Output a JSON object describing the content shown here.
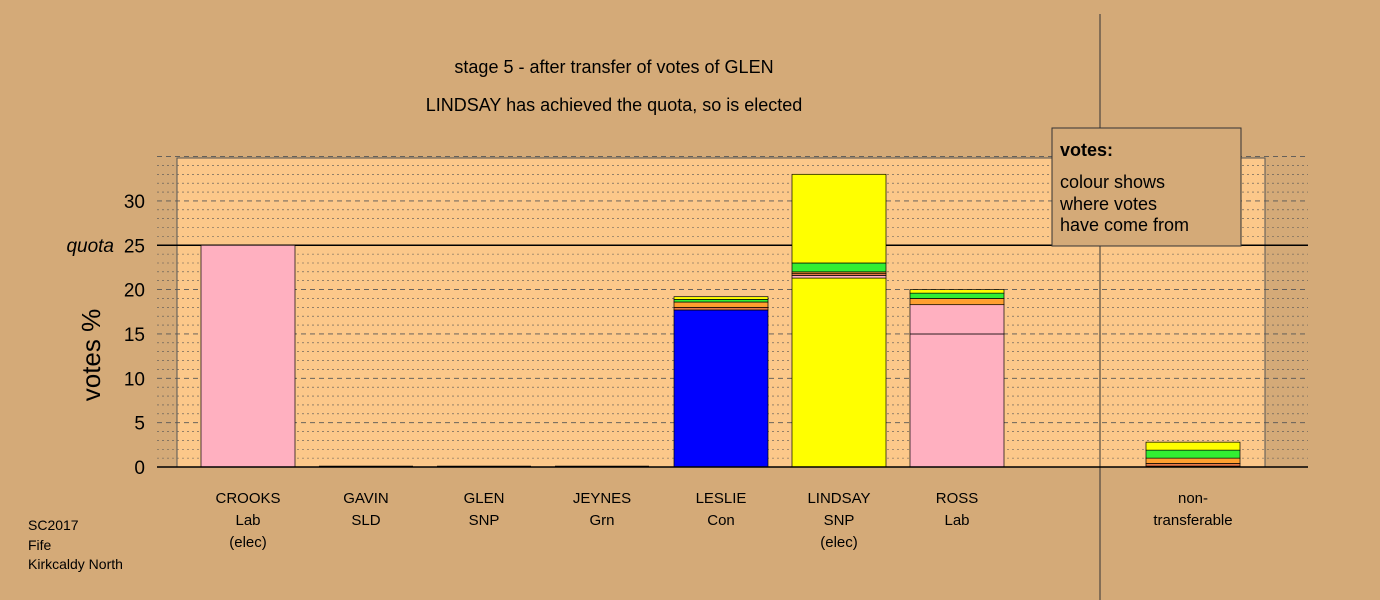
{
  "colors": {
    "background": "#d4aa78",
    "plot_background": "#fcc88a",
    "Lab": "#ffb0c0",
    "Con": "#0000ff",
    "SNP": "#ffff00",
    "Grn": "#33ee33",
    "SLD": "#ff9f2f",
    "Other": "#e87848"
  },
  "chart_data": {
    "type": "bar",
    "stacked": true,
    "title": "stage 5 - after transfer of votes of GLEN",
    "subtitle": "LINDSAY has achieved the quota, so is elected",
    "ylabel": "votes %",
    "ylim": [
      0,
      35
    ],
    "yticks": [
      0,
      5,
      10,
      15,
      20,
      25,
      30
    ],
    "quota": {
      "label": "quota",
      "value": 25
    },
    "grid": true,
    "legend": {
      "placement": "top-right",
      "title": "votes:",
      "lines": [
        "colour shows",
        "where votes",
        "have come from"
      ]
    },
    "categories": [
      {
        "lines": [
          "CROOKS",
          "Lab",
          "(elec)"
        ]
      },
      {
        "lines": [
          "GAVIN",
          "SLD"
        ]
      },
      {
        "lines": [
          "GLEN",
          "SNP"
        ]
      },
      {
        "lines": [
          "JEYNES",
          "Grn"
        ]
      },
      {
        "lines": [
          "LESLIE",
          "Con"
        ]
      },
      {
        "lines": [
          "LINDSAY",
          "SNP",
          "(elec)"
        ]
      },
      {
        "lines": [
          "ROSS",
          "Lab"
        ]
      },
      {
        "lines": [
          "non-",
          "transferable"
        ]
      }
    ],
    "bars": [
      {
        "segments": [
          {
            "party": "Lab",
            "value": 25.0
          }
        ]
      },
      {
        "segments": []
      },
      {
        "segments": []
      },
      {
        "segments": []
      },
      {
        "segments": [
          {
            "party": "Con",
            "value": 17.7
          },
          {
            "party": "Other",
            "value": 0.3
          },
          {
            "party": "SLD",
            "value": 0.6
          },
          {
            "party": "Grn",
            "value": 0.3
          },
          {
            "party": "SNP",
            "value": 0.3
          }
        ]
      },
      {
        "segments": [
          {
            "party": "SNP",
            "value": 21.3
          },
          {
            "party": "Lab",
            "value": 0.3
          },
          {
            "party": "Other",
            "value": 0.2
          },
          {
            "party": "SLD",
            "value": 0.2
          },
          {
            "party": "Grn",
            "value": 1.0
          },
          {
            "party": "SNP",
            "value": 10.0
          }
        ]
      },
      {
        "segments": [
          {
            "party": "Lab",
            "value": 15.0
          },
          {
            "party": "Lab",
            "value": 3.3
          },
          {
            "party": "SLD",
            "value": 0.7
          },
          {
            "party": "Grn",
            "value": 0.6
          },
          {
            "party": "SNP",
            "value": 0.4
          }
        ]
      },
      {
        "segments": [
          {
            "party": "Lab",
            "value": 0.1
          },
          {
            "party": "Other",
            "value": 0.3
          },
          {
            "party": "SLD",
            "value": 0.6
          },
          {
            "party": "Grn",
            "value": 0.9
          },
          {
            "party": "SNP",
            "value": 0.9
          }
        ]
      }
    ]
  },
  "footer": {
    "lines": [
      "SC2017",
      "Fife",
      "Kirkcaldy North"
    ]
  }
}
